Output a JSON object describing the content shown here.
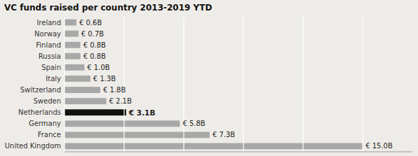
{
  "chart_data": {
    "type": "bar",
    "orientation": "horizontal",
    "title": "VC funds raised per country 2013-2019 YTD",
    "categories": [
      "United Kingdom",
      "France",
      "Germany",
      "Netherlands",
      "Sweden",
      "Switzerland",
      "Italy",
      "Spain",
      "Russia",
      "Finland",
      "Norway",
      "Ireland"
    ],
    "values": [
      15.0,
      7.3,
      5.8,
      3.1,
      2.1,
      1.8,
      1.3,
      1.0,
      0.8,
      0.8,
      0.7,
      0.6
    ],
    "value_labels": [
      "€ 15.0B",
      "€ 7.3B",
      "€ 5.8B",
      "€ 3.1B",
      "€ 2.1B",
      "€ 1.8B",
      "€ 1.3B",
      "€ 1.0B",
      "€ 0.8B",
      "€ 0.8B",
      "€ 0.7B",
      "€ 0.6B"
    ],
    "colors": [
      "#a8a8a8",
      "#a8a8a8",
      "#a8a8a8",
      "#111111",
      "#a8a8a8",
      "#a8a8a8",
      "#a8a8a8",
      "#a8a8a8",
      "#a8a8a8",
      "#a8a8a8",
      "#a8a8a8",
      "#a8a8a8"
    ],
    "xlim": [
      0,
      17.5
    ],
    "xticks": [
      0,
      3,
      6,
      9,
      12,
      15
    ],
    "grid": true,
    "data_labels": true,
    "tick_labels": "y"
  }
}
